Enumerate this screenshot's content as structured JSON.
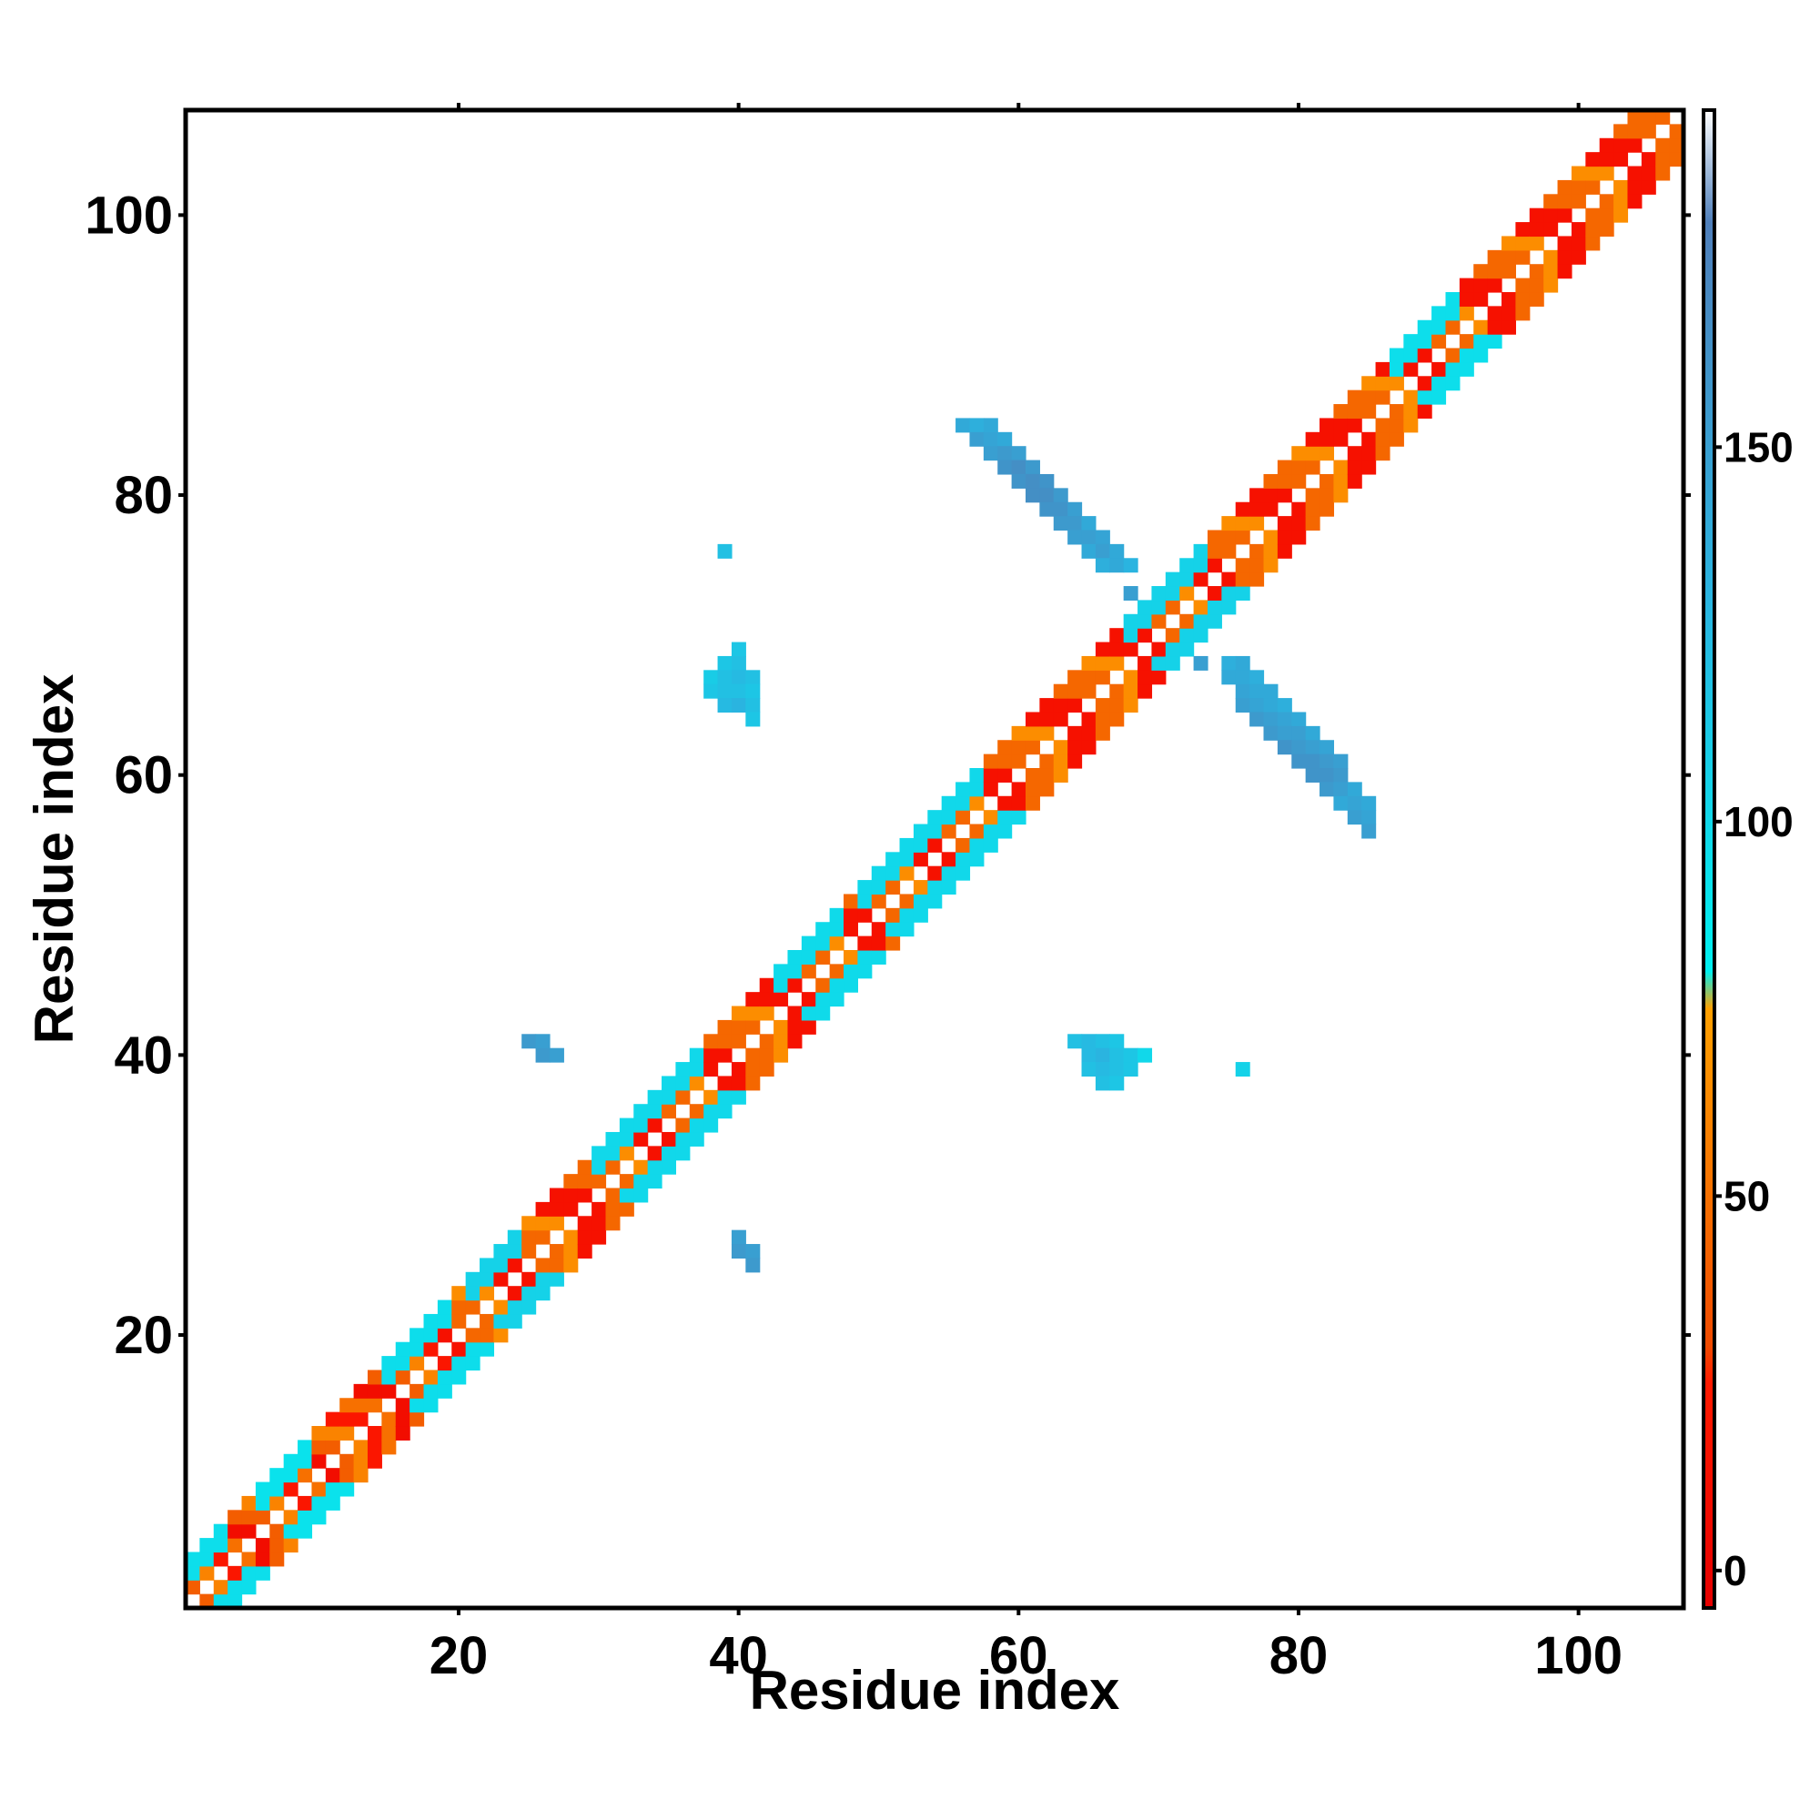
{
  "chart_data": {
    "type": "heatmap",
    "title": "",
    "xlabel": "Residue index",
    "ylabel": "Residue index",
    "xlim": [
      1,
      107
    ],
    "ylim": [
      1,
      107
    ],
    "xticks": [
      20,
      40,
      60,
      80,
      100
    ],
    "yticks": [
      20,
      40,
      60,
      80,
      100
    ],
    "colorbar": {
      "ticks": [
        0,
        50,
        100,
        150
      ],
      "range": [
        -5,
        195
      ],
      "stops": [
        {
          "value": -5,
          "color": "#e50000"
        },
        {
          "value": 25,
          "color": "#ff1a00"
        },
        {
          "value": 30,
          "color": "#f04a00"
        },
        {
          "value": 75,
          "color": "#ffa000"
        },
        {
          "value": 80,
          "color": "#00f0f0"
        },
        {
          "value": 130,
          "color": "#2ab4e0"
        },
        {
          "value": 180,
          "color": "#4f7fba"
        },
        {
          "value": 195,
          "color": "#ffffff"
        }
      ]
    },
    "diagonal_band": {
      "main_pattern_values": [
        15,
        45,
        45,
        65,
        15
      ],
      "low_index_values": [
        50,
        10,
        40,
        60,
        20
      ],
      "beta_segments": [
        {
          "start": 1,
          "end": 3,
          "value": 95
        },
        {
          "start": 6,
          "end": 9,
          "value": 92
        },
        {
          "start": 15,
          "end": 19,
          "value": 96
        },
        {
          "start": 21,
          "end": 24,
          "value": 105
        },
        {
          "start": 30,
          "end": 37,
          "value": 100
        },
        {
          "start": 43,
          "end": 47,
          "value": 98
        },
        {
          "start": 49,
          "end": 57,
          "value": 100
        },
        {
          "start": 68,
          "end": 73,
          "value": 105
        },
        {
          "start": 87,
          "end": 91,
          "value": 95
        }
      ]
    },
    "cells": [
      {
        "x": 56,
        "y": 85,
        "value": 140
      },
      {
        "x": 57,
        "y": 85,
        "value": 135
      },
      {
        "x": 58,
        "y": 85,
        "value": 140
      },
      {
        "x": 57,
        "y": 84,
        "value": 150
      },
      {
        "x": 58,
        "y": 84,
        "value": 145
      },
      {
        "x": 59,
        "y": 84,
        "value": 140
      },
      {
        "x": 58,
        "y": 83,
        "value": 150
      },
      {
        "x": 59,
        "y": 83,
        "value": 155
      },
      {
        "x": 60,
        "y": 83,
        "value": 150
      },
      {
        "x": 59,
        "y": 82,
        "value": 160
      },
      {
        "x": 60,
        "y": 82,
        "value": 165
      },
      {
        "x": 61,
        "y": 82,
        "value": 155
      },
      {
        "x": 60,
        "y": 81,
        "value": 160
      },
      {
        "x": 61,
        "y": 81,
        "value": 165
      },
      {
        "x": 62,
        "y": 81,
        "value": 160
      },
      {
        "x": 61,
        "y": 80,
        "value": 165
      },
      {
        "x": 62,
        "y": 80,
        "value": 165
      },
      {
        "x": 63,
        "y": 80,
        "value": 155
      },
      {
        "x": 62,
        "y": 79,
        "value": 160
      },
      {
        "x": 63,
        "y": 79,
        "value": 160
      },
      {
        "x": 64,
        "y": 79,
        "value": 150
      },
      {
        "x": 63,
        "y": 78,
        "value": 155
      },
      {
        "x": 64,
        "y": 78,
        "value": 155
      },
      {
        "x": 65,
        "y": 78,
        "value": 140
      },
      {
        "x": 64,
        "y": 77,
        "value": 150
      },
      {
        "x": 65,
        "y": 77,
        "value": 150
      },
      {
        "x": 66,
        "y": 77,
        "value": 145
      },
      {
        "x": 65,
        "y": 76,
        "value": 140
      },
      {
        "x": 66,
        "y": 76,
        "value": 150
      },
      {
        "x": 67,
        "y": 76,
        "value": 140
      },
      {
        "x": 66,
        "y": 75,
        "value": 135
      },
      {
        "x": 67,
        "y": 75,
        "value": 140
      },
      {
        "x": 68,
        "y": 75,
        "value": 130
      },
      {
        "x": 68,
        "y": 73,
        "value": 150
      },
      {
        "x": 73,
        "y": 68,
        "value": 150
      },
      {
        "x": 75,
        "y": 68,
        "value": 135
      },
      {
        "x": 76,
        "y": 68,
        "value": 140
      },
      {
        "x": 75,
        "y": 67,
        "value": 140
      },
      {
        "x": 76,
        "y": 67,
        "value": 140
      },
      {
        "x": 77,
        "y": 67,
        "value": 135
      },
      {
        "x": 76,
        "y": 66,
        "value": 145
      },
      {
        "x": 77,
        "y": 66,
        "value": 140
      },
      {
        "x": 78,
        "y": 66,
        "value": 140
      },
      {
        "x": 76,
        "y": 65,
        "value": 150
      },
      {
        "x": 77,
        "y": 65,
        "value": 145
      },
      {
        "x": 78,
        "y": 65,
        "value": 140
      },
      {
        "x": 79,
        "y": 65,
        "value": 135
      },
      {
        "x": 77,
        "y": 64,
        "value": 155
      },
      {
        "x": 78,
        "y": 64,
        "value": 150
      },
      {
        "x": 79,
        "y": 64,
        "value": 145
      },
      {
        "x": 80,
        "y": 64,
        "value": 140
      },
      {
        "x": 78,
        "y": 63,
        "value": 155
      },
      {
        "x": 79,
        "y": 63,
        "value": 150
      },
      {
        "x": 80,
        "y": 63,
        "value": 150
      },
      {
        "x": 81,
        "y": 63,
        "value": 140
      },
      {
        "x": 79,
        "y": 62,
        "value": 160
      },
      {
        "x": 80,
        "y": 62,
        "value": 155
      },
      {
        "x": 81,
        "y": 62,
        "value": 150
      },
      {
        "x": 82,
        "y": 62,
        "value": 145
      },
      {
        "x": 80,
        "y": 61,
        "value": 160
      },
      {
        "x": 81,
        "y": 61,
        "value": 160
      },
      {
        "x": 82,
        "y": 61,
        "value": 155
      },
      {
        "x": 83,
        "y": 61,
        "value": 150
      },
      {
        "x": 81,
        "y": 60,
        "value": 160
      },
      {
        "x": 82,
        "y": 60,
        "value": 160
      },
      {
        "x": 83,
        "y": 60,
        "value": 155
      },
      {
        "x": 82,
        "y": 59,
        "value": 155
      },
      {
        "x": 83,
        "y": 59,
        "value": 150
      },
      {
        "x": 84,
        "y": 59,
        "value": 140
      },
      {
        "x": 83,
        "y": 58,
        "value": 140
      },
      {
        "x": 84,
        "y": 58,
        "value": 145
      },
      {
        "x": 85,
        "y": 58,
        "value": 140
      },
      {
        "x": 84,
        "y": 57,
        "value": 150
      },
      {
        "x": 85,
        "y": 57,
        "value": 145
      },
      {
        "x": 85,
        "y": 56,
        "value": 150
      },
      {
        "x": 39,
        "y": 76,
        "value": 120
      },
      {
        "x": 40,
        "y": 69,
        "value": 115
      },
      {
        "x": 39,
        "y": 68,
        "value": 115
      },
      {
        "x": 40,
        "y": 68,
        "value": 120
      },
      {
        "x": 38,
        "y": 67,
        "value": 110
      },
      {
        "x": 39,
        "y": 67,
        "value": 120
      },
      {
        "x": 40,
        "y": 67,
        "value": 125
      },
      {
        "x": 41,
        "y": 67,
        "value": 120
      },
      {
        "x": 38,
        "y": 66,
        "value": 115
      },
      {
        "x": 39,
        "y": 66,
        "value": 120
      },
      {
        "x": 40,
        "y": 66,
        "value": 120
      },
      {
        "x": 41,
        "y": 66,
        "value": 115
      },
      {
        "x": 39,
        "y": 65,
        "value": 125
      },
      {
        "x": 40,
        "y": 65,
        "value": 130
      },
      {
        "x": 41,
        "y": 65,
        "value": 120
      },
      {
        "x": 41,
        "y": 64,
        "value": 115
      },
      {
        "x": 25,
        "y": 41,
        "value": 155
      },
      {
        "x": 26,
        "y": 41,
        "value": 150
      },
      {
        "x": 26,
        "y": 40,
        "value": 155
      },
      {
        "x": 27,
        "y": 40,
        "value": 150
      },
      {
        "x": 40,
        "y": 27,
        "value": 150
      },
      {
        "x": 40,
        "y": 26,
        "value": 155
      },
      {
        "x": 41,
        "y": 26,
        "value": 150
      },
      {
        "x": 41,
        "y": 25,
        "value": 155
      },
      {
        "x": 64,
        "y": 41,
        "value": 120
      },
      {
        "x": 65,
        "y": 41,
        "value": 125
      },
      {
        "x": 66,
        "y": 41,
        "value": 120
      },
      {
        "x": 67,
        "y": 41,
        "value": 115
      },
      {
        "x": 65,
        "y": 40,
        "value": 125
      },
      {
        "x": 66,
        "y": 40,
        "value": 130
      },
      {
        "x": 67,
        "y": 40,
        "value": 120
      },
      {
        "x": 68,
        "y": 40,
        "value": 115
      },
      {
        "x": 69,
        "y": 40,
        "value": 100
      },
      {
        "x": 65,
        "y": 39,
        "value": 120
      },
      {
        "x": 66,
        "y": 39,
        "value": 125
      },
      {
        "x": 67,
        "y": 39,
        "value": 120
      },
      {
        "x": 68,
        "y": 39,
        "value": 115
      },
      {
        "x": 66,
        "y": 38,
        "value": 120
      },
      {
        "x": 67,
        "y": 38,
        "value": 115
      },
      {
        "x": 76,
        "y": 39,
        "value": 105
      }
    ]
  }
}
